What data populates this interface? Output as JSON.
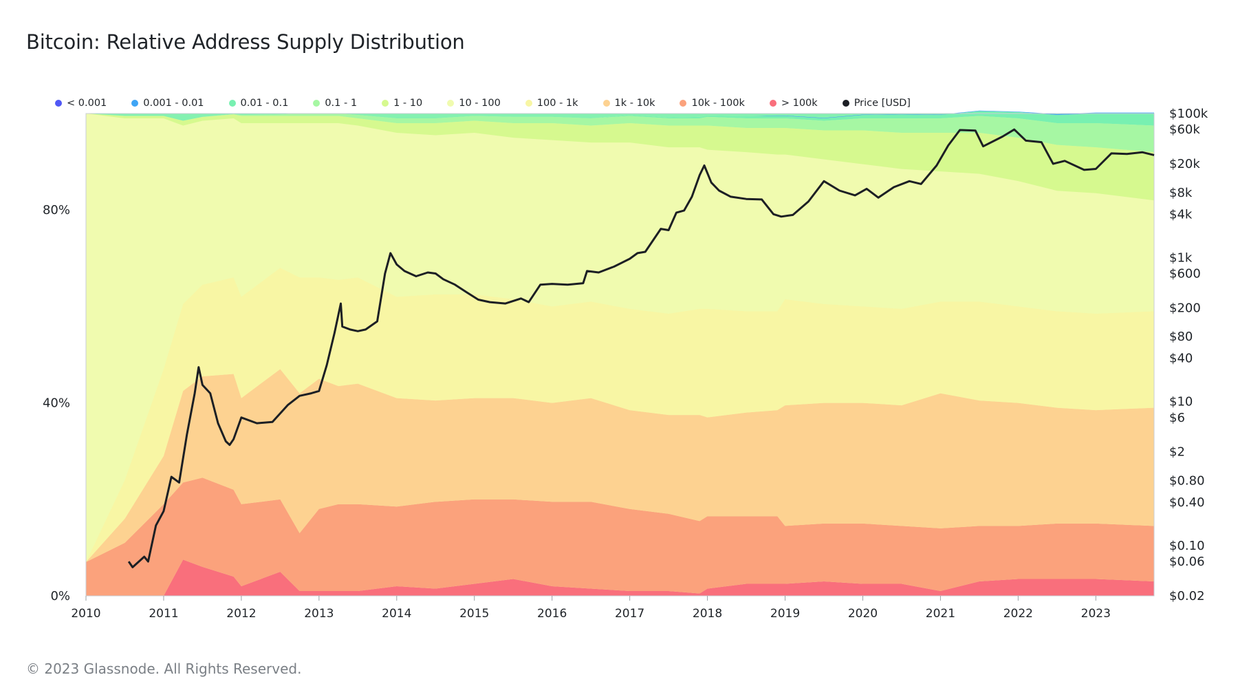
{
  "title": "Bitcoin: Relative Address Supply Distribution",
  "footer": "© 2023 Glassnode. All Rights Reserved.",
  "chart_data": {
    "type": "area",
    "stacked": true,
    "title": "Bitcoin: Relative Address Supply Distribution",
    "xlabel": "",
    "ylabel": "",
    "xlim": [
      2010,
      2023.75
    ],
    "ylim": [
      0,
      100
    ],
    "left_ticks": [
      0,
      40,
      80
    ],
    "left_tick_labels": [
      "0%",
      "40%",
      "80%"
    ],
    "x_ticks": [
      2010,
      2011,
      2012,
      2013,
      2014,
      2015,
      2016,
      2017,
      2018,
      2019,
      2020,
      2021,
      2022,
      2023
    ],
    "x_tick_labels": [
      "2010",
      "2011",
      "2012",
      "2013",
      "2014",
      "2015",
      "2016",
      "2017",
      "2018",
      "2019",
      "2020",
      "2021",
      "2022",
      "2023"
    ],
    "right_axis": {
      "scale": "log",
      "range": [
        0.02,
        100000
      ],
      "ticks": [
        100000,
        60000,
        20000,
        8000,
        4000,
        1000,
        600,
        200,
        80,
        40,
        10,
        6,
        2,
        0.8,
        0.4,
        0.1,
        0.06,
        0.02
      ],
      "tick_labels": [
        "$100k",
        "$60k",
        "$20k",
        "$8k",
        "$4k",
        "$1k",
        "$600",
        "$200",
        "$80",
        "$40",
        "$10",
        "$6",
        "$2",
        "$0.80",
        "$0.40",
        "$0.10",
        "$0.06",
        "$0.02"
      ]
    },
    "legend_position": "top-left",
    "grid": false,
    "x": [
      2010.0,
      2010.5,
      2011.0,
      2011.25,
      2011.5,
      2011.9,
      2012.0,
      2012.5,
      2012.75,
      2013.0,
      2013.25,
      2013.5,
      2014.0,
      2014.5,
      2015.0,
      2015.5,
      2016.0,
      2016.5,
      2017.0,
      2017.5,
      2017.9,
      2018.0,
      2018.5,
      2018.9,
      2019.0,
      2019.5,
      2020.0,
      2020.5,
      2021.0,
      2021.5,
      2022.0,
      2022.5,
      2023.0,
      2023.75
    ],
    "series": [
      {
        "name": "> 100k",
        "color": "#f96f7c",
        "values": [
          0,
          0,
          0,
          7.5,
          6,
          4,
          2,
          5,
          1,
          1,
          1,
          1,
          2,
          1.5,
          2.5,
          3.5,
          2,
          1.5,
          1,
          1,
          0.5,
          1.5,
          2.5,
          2.5,
          2.5,
          3,
          2.5,
          2.5,
          1,
          3,
          3.5,
          3.5,
          3.5,
          3
        ]
      },
      {
        "name": "10k - 100k",
        "color": "#fba27c",
        "values": [
          7,
          11,
          19,
          16,
          18.5,
          18,
          17,
          15,
          12,
          17,
          18,
          18,
          16.5,
          18,
          17.5,
          16.5,
          17.5,
          18,
          17,
          16,
          15,
          15,
          14,
          14,
          12,
          12,
          12.5,
          12,
          13,
          11.5,
          11,
          11.5,
          11.5,
          11.5
        ]
      },
      {
        "name": "1k - 10k",
        "color": "#fdd291",
        "values": [
          0,
          5,
          10,
          19,
          21,
          24,
          22,
          27,
          29,
          27,
          24.5,
          25,
          22.5,
          21,
          21,
          21,
          20.5,
          21.5,
          20.5,
          20.5,
          22,
          20.5,
          21.5,
          22,
          25,
          25,
          25,
          25,
          28,
          26,
          25.5,
          24,
          23.5,
          24.5
        ]
      },
      {
        "name": "100 - 1k",
        "color": "#f8f6a4",
        "values": [
          0,
          8,
          18,
          18,
          19,
          20,
          21,
          21,
          24,
          21,
          22,
          22,
          21,
          22,
          21.5,
          20.5,
          20,
          20,
          21,
          21,
          22,
          22.5,
          21,
          20.5,
          22,
          20.5,
          20,
          20,
          19,
          20.5,
          20,
          20,
          20,
          20
        ]
      },
      {
        "name": "10 - 100",
        "color": "#f0fbaf",
        "values": [
          93,
          75,
          52,
          37,
          34,
          33,
          36,
          30,
          32,
          32,
          32.5,
          31.5,
          34,
          33,
          33.5,
          33.5,
          34.5,
          33,
          34.5,
          34.5,
          33.5,
          33,
          33,
          32.5,
          30,
          30,
          29.5,
          29,
          27,
          26.5,
          26,
          25,
          25,
          23
        ]
      },
      {
        "name": "1 - 10",
        "color": "#d6f98f",
        "values": [
          0,
          0.5,
          0.5,
          1,
          0.8,
          0.8,
          1.5,
          1.5,
          1.5,
          1.5,
          1.5,
          1.5,
          2,
          2.5,
          2.5,
          3,
          3.5,
          3.5,
          4,
          4.5,
          4.5,
          5,
          5,
          5.5,
          5.5,
          6,
          7,
          7.5,
          8,
          8.5,
          9,
          9.5,
          9.5,
          10
        ]
      },
      {
        "name": "0.1 - 1",
        "color": "#a6f7a3",
        "values": [
          0,
          0,
          0,
          0,
          0,
          0.1,
          0.2,
          0.3,
          0.5,
          0.5,
          0.5,
          0.7,
          1,
          1,
          1,
          1.3,
          1.3,
          1.5,
          1.5,
          1.5,
          1.5,
          1.8,
          2,
          2,
          2,
          2,
          2.5,
          3,
          3,
          3.5,
          4,
          4.5,
          5,
          5.5
        ]
      },
      {
        "name": "0.01 - 0.1",
        "color": "#78f0b1",
        "values": [
          0,
          0,
          0,
          0,
          0,
          0,
          0,
          0,
          0,
          0,
          0,
          0,
          0,
          0,
          0,
          0,
          0,
          0,
          0.2,
          0.2,
          0.3,
          0.3,
          0.5,
          0.5,
          0.5,
          0.5,
          0.7,
          0.8,
          0.7,
          1,
          1.3,
          1.7,
          2,
          2.5
        ]
      },
      {
        "name": "0.001 - 0.01",
        "color": "#3fa5f5",
        "values": [
          0,
          0,
          0,
          0,
          0,
          0,
          0,
          0,
          0,
          0,
          0,
          0,
          0,
          0,
          0,
          0,
          0,
          0,
          0,
          0,
          0,
          0,
          0,
          0.1,
          0.1,
          0.1,
          0.1,
          0.1,
          0.1,
          0.1,
          0.1,
          0.2,
          0.2,
          0.2
        ]
      },
      {
        "name": "< 0.001",
        "color": "#5058f5",
        "values": [
          0,
          0,
          0,
          0,
          0,
          0,
          0,
          0,
          0,
          0,
          0,
          0,
          0,
          0,
          0,
          0,
          0,
          0,
          0,
          0,
          0,
          0,
          0,
          0,
          0,
          0,
          0,
          0,
          0,
          0,
          0,
          0,
          0,
          0
        ]
      }
    ],
    "price": {
      "name": "Price [USD]",
      "color": "#1c1f24",
      "x": [
        2010.55,
        2010.6,
        2010.75,
        2010.8,
        2010.9,
        2011.0,
        2011.1,
        2011.2,
        2011.3,
        2011.4,
        2011.45,
        2011.5,
        2011.6,
        2011.7,
        2011.8,
        2011.85,
        2011.9,
        2012.0,
        2012.2,
        2012.4,
        2012.6,
        2012.75,
        2012.9,
        2013.0,
        2013.1,
        2013.2,
        2013.28,
        2013.3,
        2013.4,
        2013.5,
        2013.6,
        2013.75,
        2013.85,
        2013.92,
        2014.0,
        2014.1,
        2014.25,
        2014.4,
        2014.5,
        2014.6,
        2014.75,
        2014.9,
        2015.05,
        2015.2,
        2015.4,
        2015.6,
        2015.7,
        2015.85,
        2016.0,
        2016.2,
        2016.4,
        2016.45,
        2016.6,
        2016.8,
        2017.0,
        2017.1,
        2017.2,
        2017.4,
        2017.5,
        2017.6,
        2017.7,
        2017.8,
        2017.9,
        2017.96,
        2018.05,
        2018.15,
        2018.3,
        2018.5,
        2018.7,
        2018.85,
        2018.95,
        2019.1,
        2019.3,
        2019.5,
        2019.7,
        2019.9,
        2020.05,
        2020.2,
        2020.4,
        2020.6,
        2020.75,
        2020.95,
        2021.1,
        2021.25,
        2021.45,
        2021.55,
        2021.8,
        2021.95,
        2022.1,
        2022.3,
        2022.45,
        2022.6,
        2022.85,
        2023.0,
        2023.2,
        2023.4,
        2023.6,
        2023.75
      ],
      "values": [
        0.06,
        0.05,
        0.07,
        0.06,
        0.19,
        0.3,
        0.9,
        0.75,
        3.5,
        13,
        30,
        17,
        13,
        5,
        2.8,
        2.5,
        3,
        6,
        5,
        5.2,
        9,
        12,
        13,
        14,
        32,
        90,
        230,
        110,
        100,
        95,
        100,
        130,
        600,
        1150,
        800,
        650,
        550,
        620,
        600,
        500,
        420,
        330,
        260,
        240,
        230,
        270,
        240,
        420,
        430,
        420,
        440,
        650,
        620,
        750,
        960,
        1150,
        1200,
        2500,
        2400,
        4200,
        4500,
        7000,
        14000,
        19000,
        11000,
        8500,
        7000,
        6500,
        6400,
        4000,
        3700,
        3900,
        6000,
        11500,
        8500,
        7300,
        9000,
        6800,
        9500,
        11500,
        10500,
        19000,
        36000,
        59000,
        58000,
        35000,
        48000,
        60000,
        42000,
        40000,
        20000,
        22000,
        16500,
        17000,
        28000,
        27500,
        29000,
        26500
      ]
    }
  }
}
